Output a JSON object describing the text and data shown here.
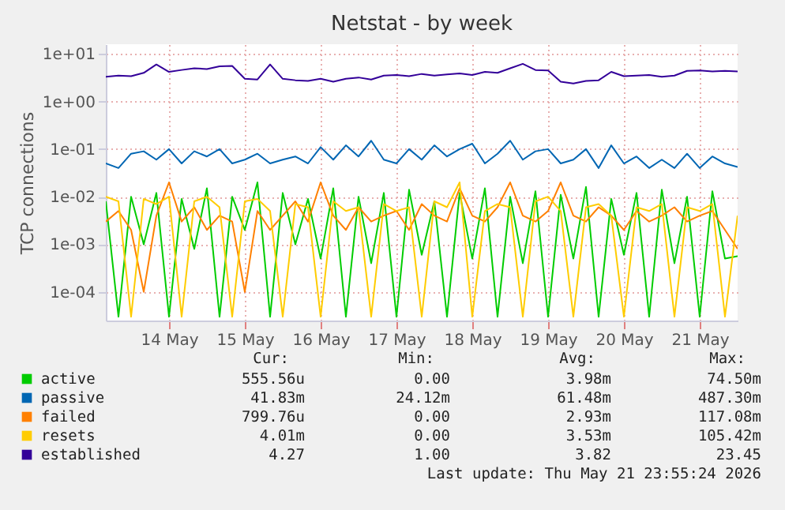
{
  "chart_data": {
    "type": "line",
    "title": "Netstat - by week",
    "ylabel": "TCP connections",
    "log": "y",
    "grid": true,
    "legend": "bottom left",
    "x": [
      "2026-05-13T16:00",
      "2026-05-13T20:00",
      "2026-05-14T00:00",
      "2026-05-14T04:00",
      "2026-05-14T08:00",
      "2026-05-14T12:00",
      "2026-05-14T16:00",
      "2026-05-14T20:00",
      "2026-05-15T00:00",
      "2026-05-15T04:00",
      "2026-05-15T08:00",
      "2026-05-15T12:00",
      "2026-05-15T16:00",
      "2026-05-15T20:00",
      "2026-05-16T00:00",
      "2026-05-16T04:00",
      "2026-05-16T08:00",
      "2026-05-16T12:00",
      "2026-05-16T16:00",
      "2026-05-16T20:00",
      "2026-05-17T00:00",
      "2026-05-17T04:00",
      "2026-05-17T08:00",
      "2026-05-17T12:00",
      "2026-05-17T16:00",
      "2026-05-17T20:00",
      "2026-05-18T00:00",
      "2026-05-18T04:00",
      "2026-05-18T08:00",
      "2026-05-18T12:00",
      "2026-05-18T16:00",
      "2026-05-18T20:00",
      "2026-05-19T00:00",
      "2026-05-19T04:00",
      "2026-05-19T08:00",
      "2026-05-19T12:00",
      "2026-05-19T16:00",
      "2026-05-19T20:00",
      "2026-05-20T00:00",
      "2026-05-20T04:00",
      "2026-05-20T08:00",
      "2026-05-20T12:00",
      "2026-05-20T16:00",
      "2026-05-20T20:00",
      "2026-05-21T00:00",
      "2026-05-21T04:00",
      "2026-05-21T08:00",
      "2026-05-21T12:00",
      "2026-05-21T16:00",
      "2026-05-21T20:00",
      "2026-05-22T00:00"
    ],
    "xlim": [
      "2026-05-13T16:00",
      "2026-05-22T00:00"
    ],
    "xticks": [
      {
        "value": "2026-05-14T12:00",
        "label": "14 May"
      },
      {
        "value": "2026-05-15T12:00",
        "label": "15 May"
      },
      {
        "value": "2026-05-16T12:00",
        "label": "16 May"
      },
      {
        "value": "2026-05-17T12:00",
        "label": "17 May"
      },
      {
        "value": "2026-05-18T12:00",
        "label": "18 May"
      },
      {
        "value": "2026-05-19T12:00",
        "label": "19 May"
      },
      {
        "value": "2026-05-20T12:00",
        "label": "20 May"
      },
      {
        "value": "2026-05-21T12:00",
        "label": "21 May"
      }
    ],
    "ylim": [
      2.5e-05,
      16
    ],
    "yticks": [
      {
        "value": 0.0001,
        "label": "1e-04"
      },
      {
        "value": 0.001,
        "label": "1e-03"
      },
      {
        "value": 0.01,
        "label": "1e-02"
      },
      {
        "value": 0.1,
        "label": "1e-01"
      },
      {
        "value": 1,
        "label": "1e+00"
      },
      {
        "value": 10,
        "label": "1e+01"
      }
    ],
    "series": [
      {
        "name": "active",
        "color": "#00cc00",
        "values": [
          0.008,
          3e-05,
          0.01,
          0.001,
          0.012,
          3e-05,
          0.009,
          0.0008,
          0.015,
          3e-05,
          0.01,
          0.002,
          0.02,
          3e-05,
          0.012,
          0.001,
          0.009,
          0.0005,
          0.015,
          3e-05,
          0.01,
          0.0004,
          0.012,
          3e-05,
          0.014,
          0.0006,
          0.008,
          3e-05,
          0.012,
          0.0005,
          0.015,
          3e-05,
          0.01,
          0.0004,
          0.013,
          3e-05,
          0.011,
          0.0005,
          0.016,
          3e-05,
          0.009,
          0.0006,
          0.012,
          3e-05,
          0.014,
          0.0004,
          0.01,
          3e-05,
          0.013,
          0.0005,
          0.00056
        ]
      },
      {
        "name": "passive",
        "color": "#0066b3",
        "values": [
          0.05,
          0.04,
          0.08,
          0.09,
          0.06,
          0.1,
          0.05,
          0.09,
          0.07,
          0.1,
          0.05,
          0.06,
          0.08,
          0.05,
          0.06,
          0.07,
          0.05,
          0.11,
          0.06,
          0.12,
          0.07,
          0.15,
          0.06,
          0.05,
          0.1,
          0.06,
          0.12,
          0.07,
          0.1,
          0.13,
          0.05,
          0.08,
          0.15,
          0.06,
          0.09,
          0.1,
          0.05,
          0.06,
          0.1,
          0.04,
          0.12,
          0.05,
          0.07,
          0.04,
          0.06,
          0.04,
          0.08,
          0.04,
          0.07,
          0.05,
          0.042
        ]
      },
      {
        "name": "failed",
        "color": "#ff8000",
        "values": [
          0.003,
          0.005,
          0.002,
          0.0001,
          0.004,
          0.02,
          0.003,
          0.006,
          0.002,
          0.004,
          0.003,
          0.0001,
          0.005,
          0.002,
          0.004,
          0.008,
          0.003,
          0.02,
          0.004,
          0.002,
          0.006,
          0.003,
          0.004,
          0.005,
          0.002,
          0.007,
          0.004,
          0.003,
          0.015,
          0.004,
          0.003,
          0.006,
          0.02,
          0.004,
          0.003,
          0.005,
          0.02,
          0.004,
          0.003,
          0.006,
          0.004,
          0.002,
          0.005,
          0.003,
          0.004,
          0.006,
          0.003,
          0.004,
          0.005,
          0.002,
          0.0008
        ]
      },
      {
        "name": "resets",
        "color": "#ffcc00",
        "values": [
          0.01,
          0.008,
          3e-05,
          0.009,
          0.007,
          0.01,
          3e-05,
          0.008,
          0.01,
          0.006,
          3e-05,
          0.008,
          0.009,
          0.005,
          3e-05,
          0.007,
          0.006,
          3e-05,
          0.008,
          0.005,
          0.006,
          3e-05,
          0.007,
          0.005,
          0.006,
          3e-05,
          0.008,
          0.006,
          0.02,
          3e-05,
          0.005,
          0.007,
          0.006,
          3e-05,
          0.008,
          0.01,
          0.005,
          3e-05,
          0.006,
          0.007,
          0.004,
          3e-05,
          0.006,
          0.005,
          0.007,
          3e-05,
          0.006,
          0.005,
          0.007,
          3e-05,
          0.004
        ]
      },
      {
        "name": "established",
        "color": "#330099",
        "values": [
          3.3,
          3.5,
          3.4,
          4.0,
          6.0,
          4.2,
          4.6,
          5.0,
          4.8,
          5.5,
          5.6,
          3.0,
          2.9,
          6.0,
          3.0,
          2.8,
          2.7,
          3.0,
          2.6,
          3.0,
          3.2,
          2.9,
          3.5,
          3.6,
          3.4,
          3.8,
          3.5,
          3.7,
          3.9,
          3.6,
          4.2,
          4.0,
          5.0,
          6.2,
          4.6,
          4.5,
          2.6,
          2.4,
          2.7,
          2.8,
          4.2,
          3.4,
          3.5,
          3.6,
          3.3,
          3.5,
          4.4,
          4.5,
          4.3,
          4.4,
          4.27
        ]
      }
    ],
    "annotations": [
      "Cur:",
      "Min:",
      "Avg:",
      "Max:",
      "555.56u",
      "0.00",
      "3.98m",
      "74.50m",
      "41.83m",
      "24.12m",
      "61.48m",
      "487.30m",
      "799.76u",
      "0.00",
      "2.93m",
      "117.08m",
      "4.01m",
      "0.00",
      "3.53m",
      "105.42m",
      "4.27",
      "1.00",
      "3.82",
      "23.45",
      "Last update: Thu May 21 23:55:24 2026"
    ]
  }
}
